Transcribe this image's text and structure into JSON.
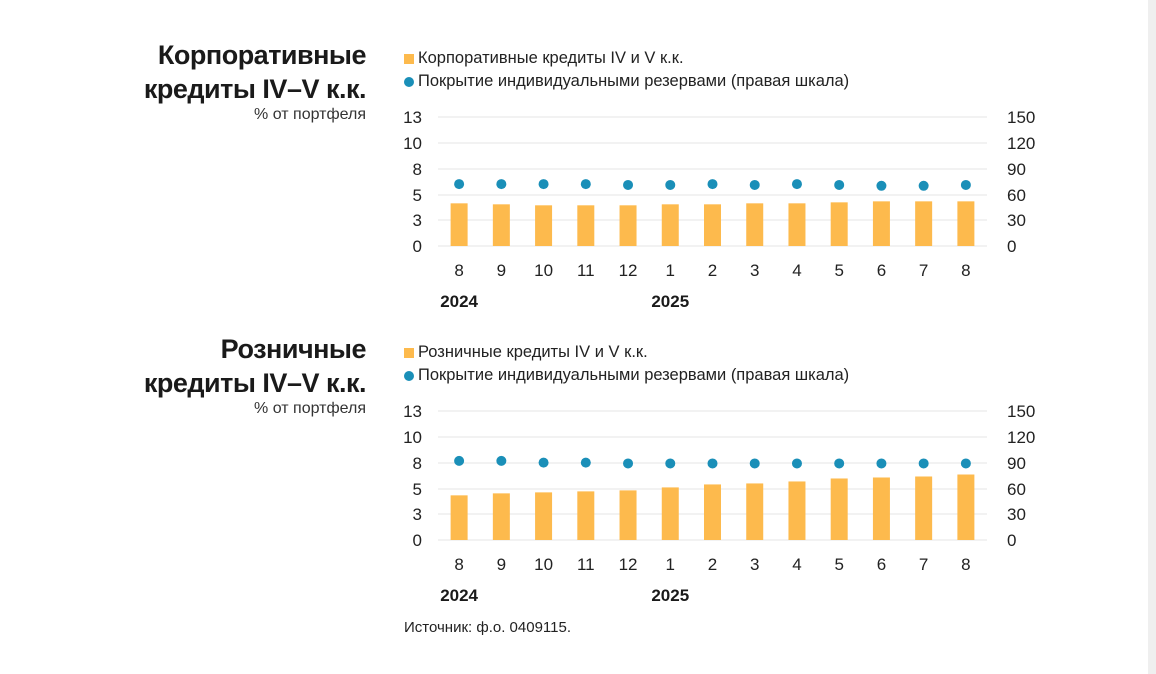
{
  "colors": {
    "bar": "#FDBA4D",
    "dot": "#1A8FB8",
    "grid": "#e6e6e6"
  },
  "chart_data": [
    {
      "type": "bar",
      "title_lines": [
        "Корпоративные",
        "кредиты IV–V к.к."
      ],
      "subtitle": "% от портфеля",
      "categories": [
        "8",
        "9",
        "10",
        "11",
        "12",
        "1",
        "2",
        "3",
        "4",
        "5",
        "6",
        "7",
        "8"
      ],
      "years": [
        {
          "label": "2024",
          "index": 0
        },
        {
          "label": "2025",
          "index": 5
        }
      ],
      "series": [
        {
          "name": "Корпоративные кредиты IV и V к.к.",
          "type": "bar",
          "axis": "left",
          "values": [
            4.3,
            4.2,
            4.1,
            4.1,
            4.1,
            4.2,
            4.2,
            4.3,
            4.3,
            4.4,
            4.5,
            4.5,
            4.5
          ]
        },
        {
          "name": "Покрытие индивидуальными резервами (правая шкала)",
          "type": "scatter",
          "axis": "right",
          "values": [
            72,
            72,
            72,
            72,
            71,
            71,
            72,
            71,
            72,
            71,
            70,
            70,
            71
          ]
        }
      ],
      "left_ticks": [
        "13",
        "10",
        "8",
        "5",
        "3",
        "0"
      ],
      "right_ticks": [
        "150",
        "120",
        "90",
        "60",
        "30",
        "0"
      ],
      "ylim_left": [
        0,
        13
      ],
      "ylim_right": [
        0,
        150
      ]
    },
    {
      "type": "bar",
      "title_lines": [
        "Розничные",
        "кредиты IV–V к.к."
      ],
      "subtitle": "% от портфеля",
      "categories": [
        "8",
        "9",
        "10",
        "11",
        "12",
        "1",
        "2",
        "3",
        "4",
        "5",
        "6",
        "7",
        "8"
      ],
      "years": [
        {
          "label": "2024",
          "index": 0
        },
        {
          "label": "2025",
          "index": 5
        }
      ],
      "series": [
        {
          "name": "Розничные кредиты IV и V к.к.",
          "type": "bar",
          "axis": "left",
          "values": [
            4.5,
            4.7,
            4.8,
            4.9,
            5.0,
            5.3,
            5.6,
            5.7,
            5.9,
            6.2,
            6.3,
            6.4,
            6.6
          ]
        },
        {
          "name": "Покрытие индивидуальными резервами (правая шкала)",
          "type": "scatter",
          "axis": "right",
          "values": [
            92,
            92,
            90,
            90,
            89,
            89,
            89,
            89,
            89,
            89,
            89,
            89,
            89
          ]
        }
      ],
      "left_ticks": [
        "13",
        "10",
        "8",
        "5",
        "3",
        "0"
      ],
      "right_ticks": [
        "150",
        "120",
        "90",
        "60",
        "30",
        "0"
      ],
      "ylim_left": [
        0,
        13
      ],
      "ylim_right": [
        0,
        150
      ]
    }
  ],
  "source": "Источник: ф.о. 0409115."
}
